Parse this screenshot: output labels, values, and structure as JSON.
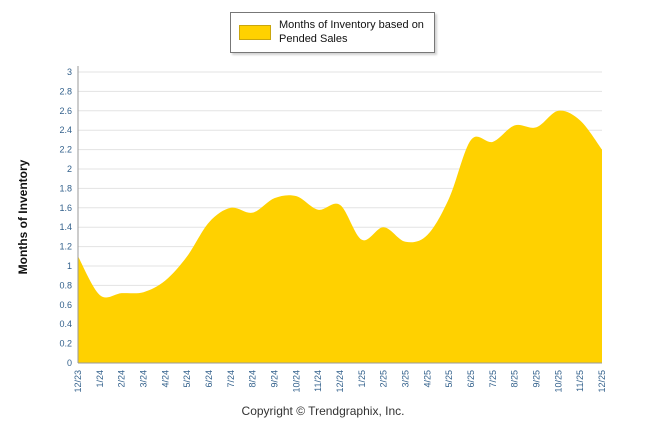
{
  "legend": {
    "label": "Months of Inventory based on Pended Sales"
  },
  "y_axis_title": "Months of Inventory",
  "footer": {
    "copyright": "Copyright © Trendgraphix, Inc."
  },
  "chart_data": {
    "type": "area",
    "title": "Months of Inventory based on Pended Sales",
    "categories": [
      "12/23",
      "1/24",
      "2/24",
      "3/24",
      "4/24",
      "5/24",
      "6/24",
      "7/24",
      "8/24",
      "9/24",
      "10/24",
      "11/24",
      "12/24",
      "1/25",
      "2/25",
      "3/25",
      "4/25",
      "5/25",
      "6/25",
      "7/25",
      "8/25",
      "9/25",
      "10/25",
      "11/25",
      "12/25"
    ],
    "values": [
      1.1,
      0.7,
      0.72,
      0.73,
      0.85,
      1.1,
      1.45,
      1.6,
      1.55,
      1.7,
      1.72,
      1.58,
      1.63,
      1.27,
      1.4,
      1.25,
      1.32,
      1.7,
      2.3,
      2.28,
      2.45,
      2.43,
      2.6,
      2.5,
      2.2
    ],
    "xlabel": "",
    "ylabel": "Months of Inventory",
    "ylim": [
      0,
      3
    ],
    "y_tick_step": 0.2,
    "grid": true,
    "legend_position": "top",
    "area_color": "#FFD100",
    "tick_label_color": "#33618C",
    "grid_color": "#e3e3e3",
    "axis_color": "#9a9a9a"
  }
}
